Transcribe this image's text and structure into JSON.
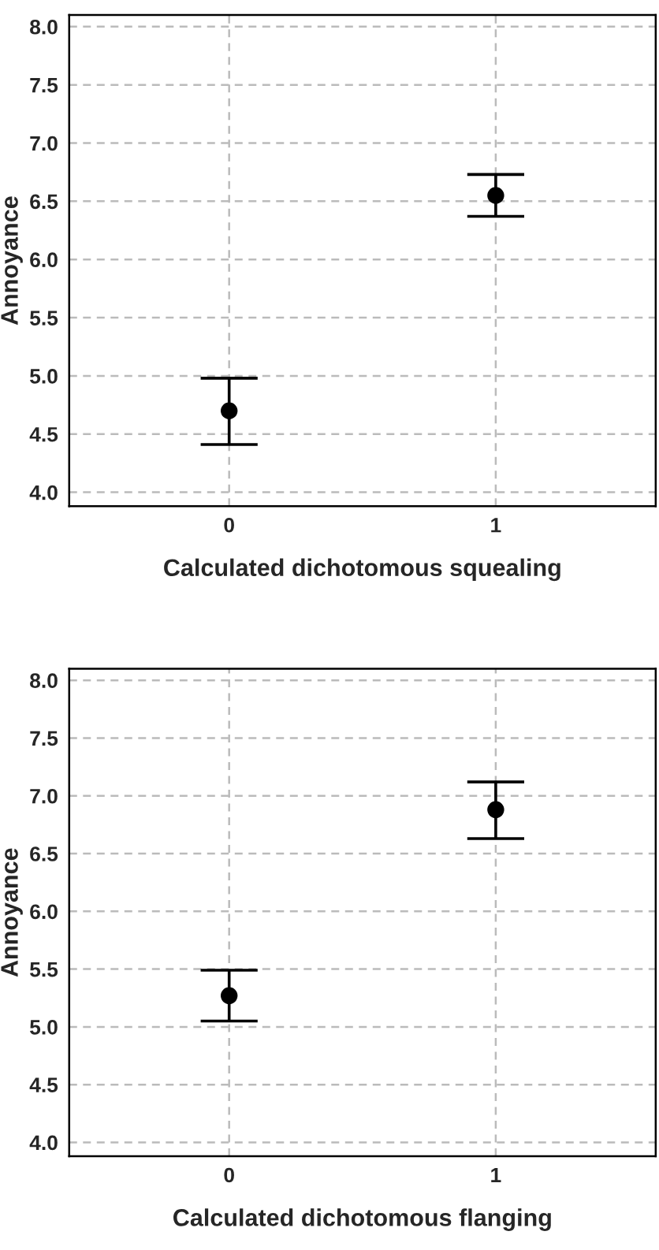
{
  "chart_data": [
    {
      "type": "scatter",
      "xlabel": "Calculated dichotomous squealing",
      "ylabel": "Annoyance",
      "categories": [
        "0",
        "1"
      ],
      "color": "#000000",
      "values": [
        4.7,
        6.55
      ],
      "errors": [
        [
          4.41,
          4.98
        ],
        [
          6.37,
          6.73
        ]
      ],
      "ylim": [
        3.88,
        8.1
      ],
      "yticks": [
        {
          "value": 4.0,
          "label": "4.0"
        },
        {
          "value": 4.5,
          "label": "4.5"
        },
        {
          "value": 5.0,
          "label": "5.0"
        },
        {
          "value": 5.5,
          "label": "5.5"
        },
        {
          "value": 6.0,
          "label": "6.0"
        },
        {
          "value": 6.5,
          "label": "6.5"
        },
        {
          "value": 7.0,
          "label": "7.0"
        },
        {
          "value": 7.5,
          "label": "7.5"
        },
        {
          "value": 8.0,
          "label": "8.0"
        }
      ],
      "grid": true,
      "marker": "circle"
    },
    {
      "type": "scatter",
      "xlabel": "Calculated dichotomous flanging",
      "ylabel": "Annoyance",
      "categories": [
        "0",
        "1"
      ],
      "color": "#000000",
      "values": [
        5.27,
        6.88
      ],
      "errors": [
        [
          5.05,
          5.49
        ],
        [
          6.63,
          7.12
        ]
      ],
      "ylim": [
        3.88,
        8.1
      ],
      "yticks": [
        {
          "value": 4.0,
          "label": "4.0"
        },
        {
          "value": 4.5,
          "label": "4.5"
        },
        {
          "value": 5.0,
          "label": "5.0"
        },
        {
          "value": 5.5,
          "label": "5.5"
        },
        {
          "value": 6.0,
          "label": "6.0"
        },
        {
          "value": 6.5,
          "label": "6.5"
        },
        {
          "value": 7.0,
          "label": "7.0"
        },
        {
          "value": 7.5,
          "label": "7.5"
        },
        {
          "value": 8.0,
          "label": "8.0"
        }
      ],
      "grid": true,
      "marker": "circle"
    }
  ]
}
